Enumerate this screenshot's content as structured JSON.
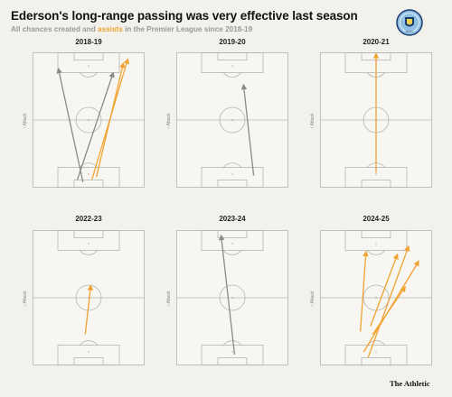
{
  "title": "Ederson's long-range passing was very effective last season",
  "subtitle_prefix": "All chances created and ",
  "subtitle_highlight": "assists",
  "subtitle_suffix": " in the Premier League since 2018-19",
  "footer": "The Athletic",
  "crest_text": "MCFC",
  "attack_label": "Attack",
  "colors": {
    "chance": "#8a8a8a",
    "assist": "#f0a330",
    "pitch_line": "#b5b5b0",
    "pitch_fill": "#f7f6f2"
  },
  "chart_data": {
    "type": "scatter",
    "series": [
      {
        "name": "chances created",
        "color": "#8a8a8a"
      },
      {
        "name": "assists",
        "color": "#f0a330"
      }
    ],
    "panels": [
      {
        "season": "2018-19",
        "passes": [
          {
            "kind": "chance",
            "x0": 45,
            "y0": 4,
            "x1": 23,
            "y1": 88
          },
          {
            "kind": "chance",
            "x0": 40,
            "y0": 6,
            "x1": 72,
            "y1": 85
          },
          {
            "kind": "assist",
            "x0": 53,
            "y0": 6,
            "x1": 85,
            "y1": 95
          },
          {
            "kind": "assist",
            "x0": 57,
            "y0": 8,
            "x1": 81,
            "y1": 92
          }
        ]
      },
      {
        "season": "2019-20",
        "passes": [
          {
            "kind": "chance",
            "x0": 69,
            "y0": 9,
            "x1": 60,
            "y1": 76
          }
        ]
      },
      {
        "season": "2020-21",
        "passes": [
          {
            "kind": "assist",
            "x0": 50,
            "y0": 11,
            "x1": 50,
            "y1": 99
          }
        ]
      },
      {
        "season": "2022-23",
        "passes": [
          {
            "kind": "assist",
            "x0": 47,
            "y0": 23,
            "x1": 52,
            "y1": 59
          }
        ]
      },
      {
        "season": "2023-24",
        "passes": [
          {
            "kind": "chance",
            "x0": 52,
            "y0": 8,
            "x1": 40,
            "y1": 96
          }
        ]
      },
      {
        "season": "2024-25",
        "passes": [
          {
            "kind": "assist",
            "x0": 36,
            "y0": 25,
            "x1": 41,
            "y1": 84
          },
          {
            "kind": "assist",
            "x0": 39,
            "y0": 10,
            "x1": 88,
            "y1": 77
          },
          {
            "kind": "assist",
            "x0": 43,
            "y0": 6,
            "x1": 79,
            "y1": 88
          },
          {
            "kind": "assist",
            "x0": 47,
            "y0": 23,
            "x1": 76,
            "y1": 58
          },
          {
            "kind": "assist",
            "x0": 45,
            "y0": 29,
            "x1": 69,
            "y1": 82
          }
        ]
      }
    ]
  }
}
